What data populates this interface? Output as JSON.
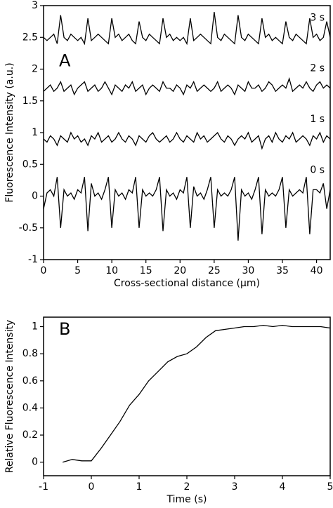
{
  "chart_data": [
    {
      "type": "line",
      "panel_label": "A",
      "x_label": "Cross-sectional distance (µm)",
      "y_label": "Fluorescence Intensity (a.u.)",
      "xlim": [
        0,
        42
      ],
      "ylim": [
        -1,
        3
      ],
      "xticks": [
        0,
        5,
        10,
        15,
        20,
        25,
        30,
        35,
        40
      ],
      "yticks": [
        -1,
        -0.5,
        0,
        0.5,
        1,
        1.5,
        2,
        2.5,
        3
      ],
      "x": [
        0,
        0.5,
        1,
        1.5,
        2,
        2.5,
        3,
        3.5,
        4,
        4.5,
        5,
        5.5,
        6,
        6.5,
        7,
        7.5,
        8,
        8.5,
        9,
        9.5,
        10,
        10.5,
        11,
        11.5,
        12,
        12.5,
        13,
        13.5,
        14,
        14.5,
        15,
        15.5,
        16,
        16.5,
        17,
        17.5,
        18,
        18.5,
        19,
        19.5,
        20,
        20.5,
        21,
        21.5,
        22,
        22.5,
        23,
        23.5,
        24,
        24.5,
        25,
        25.5,
        26,
        26.5,
        27,
        27.5,
        28,
        28.5,
        29,
        29.5,
        30,
        30.5,
        31,
        31.5,
        32,
        32.5,
        33,
        33.5,
        34,
        34.5,
        35,
        35.5,
        36,
        36.5,
        37,
        37.5,
        38,
        38.5,
        39,
        39.5,
        40,
        40.5,
        41,
        41.5,
        42
      ],
      "series": [
        {
          "name": "0 s",
          "color": "#000000",
          "values": [
            -0.2,
            0.05,
            0.1,
            0,
            0.3,
            -0.5,
            0.1,
            0,
            0.05,
            -0.05,
            0.1,
            0.05,
            0.3,
            -0.55,
            0.2,
            0,
            0.05,
            -0.05,
            0.1,
            0.3,
            -0.5,
            0.1,
            0,
            0.05,
            -0.05,
            0.1,
            0.05,
            0.3,
            -0.5,
            0.1,
            0,
            0.05,
            0,
            0.1,
            0.3,
            -0.55,
            0.1,
            0,
            0.05,
            -0.05,
            0.1,
            0.05,
            0.3,
            -0.5,
            0.15,
            0,
            0.05,
            -0.05,
            0.1,
            0.3,
            -0.5,
            0.1,
            0,
            0.05,
            0,
            0.1,
            0.3,
            -0.7,
            0.1,
            0,
            0.05,
            -0.05,
            0.1,
            0.3,
            -0.6,
            0.1,
            0,
            0.05,
            0,
            0.1,
            0.3,
            -0.5,
            0.1,
            0,
            0.05,
            0.1,
            0.05,
            0.3,
            -0.6,
            0.1,
            0.1,
            0.05,
            0.2,
            -0.2,
            0.1
          ]
        },
        {
          "name": "1 s",
          "color": "#000000",
          "values": [
            0.9,
            0.85,
            0.95,
            0.9,
            0.8,
            0.95,
            0.9,
            0.85,
            1.0,
            0.9,
            0.95,
            0.85,
            0.9,
            0.8,
            0.95,
            0.9,
            1.0,
            0.85,
            0.9,
            0.95,
            0.85,
            0.9,
            1.0,
            0.9,
            0.85,
            0.95,
            0.9,
            0.8,
            0.95,
            0.9,
            0.85,
            0.95,
            1.0,
            0.9,
            0.85,
            0.9,
            0.95,
            0.85,
            0.9,
            1.0,
            0.9,
            0.85,
            0.95,
            0.9,
            0.85,
            1.0,
            0.9,
            0.95,
            0.85,
            0.9,
            0.95,
            1.0,
            0.9,
            0.85,
            0.95,
            0.9,
            0.8,
            0.9,
            0.95,
            0.9,
            1.0,
            0.85,
            0.9,
            0.95,
            0.75,
            0.9,
            0.95,
            0.85,
            1.0,
            0.9,
            0.85,
            0.95,
            0.9,
            1.0,
            0.85,
            0.9,
            0.95,
            0.9,
            0.8,
            0.95,
            0.9,
            1.0,
            0.85,
            0.95,
            0.9
          ]
        },
        {
          "name": "2 s",
          "color": "#000000",
          "values": [
            1.65,
            1.7,
            1.75,
            1.65,
            1.7,
            1.8,
            1.65,
            1.7,
            1.75,
            1.6,
            1.7,
            1.75,
            1.8,
            1.65,
            1.7,
            1.75,
            1.65,
            1.7,
            1.8,
            1.7,
            1.6,
            1.75,
            1.7,
            1.65,
            1.75,
            1.7,
            1.8,
            1.65,
            1.7,
            1.75,
            1.6,
            1.7,
            1.75,
            1.7,
            1.65,
            1.8,
            1.7,
            1.7,
            1.65,
            1.75,
            1.7,
            1.6,
            1.75,
            1.7,
            1.8,
            1.65,
            1.7,
            1.75,
            1.7,
            1.65,
            1.7,
            1.8,
            1.65,
            1.7,
            1.75,
            1.7,
            1.6,
            1.75,
            1.7,
            1.65,
            1.8,
            1.7,
            1.7,
            1.75,
            1.65,
            1.7,
            1.8,
            1.75,
            1.65,
            1.7,
            1.75,
            1.7,
            1.85,
            1.65,
            1.7,
            1.75,
            1.7,
            1.8,
            1.7,
            1.65,
            1.75,
            1.8,
            1.7,
            1.75,
            1.7
          ]
        },
        {
          "name": "3 s",
          "color": "#000000",
          "values": [
            2.5,
            2.45,
            2.5,
            2.55,
            2.4,
            2.85,
            2.5,
            2.45,
            2.55,
            2.5,
            2.45,
            2.5,
            2.4,
            2.8,
            2.45,
            2.5,
            2.55,
            2.5,
            2.45,
            2.4,
            2.8,
            2.5,
            2.55,
            2.45,
            2.5,
            2.55,
            2.45,
            2.4,
            2.75,
            2.5,
            2.45,
            2.55,
            2.5,
            2.45,
            2.4,
            2.8,
            2.5,
            2.55,
            2.45,
            2.5,
            2.45,
            2.5,
            2.4,
            2.8,
            2.45,
            2.5,
            2.55,
            2.5,
            2.45,
            2.4,
            2.9,
            2.5,
            2.45,
            2.55,
            2.5,
            2.45,
            2.4,
            2.85,
            2.5,
            2.45,
            2.55,
            2.5,
            2.45,
            2.4,
            2.8,
            2.5,
            2.55,
            2.45,
            2.5,
            2.45,
            2.4,
            2.75,
            2.5,
            2.45,
            2.55,
            2.5,
            2.45,
            2.4,
            2.8,
            2.5,
            2.55,
            2.45,
            2.5,
            2.75,
            2.5
          ]
        }
      ]
    },
    {
      "type": "line",
      "panel_label": "B",
      "x_label": "Time (s)",
      "y_label": "Relative Fluorescence Intensity",
      "xlim": [
        -1,
        5
      ],
      "ylim": [
        -0.1,
        1.07
      ],
      "xticks": [
        -1,
        0,
        1,
        2,
        3,
        4,
        5
      ],
      "yticks": [
        0,
        0.2,
        0.4,
        0.6,
        0.8,
        1
      ],
      "x": [
        -0.6,
        -0.4,
        -0.2,
        0,
        0.2,
        0.4,
        0.6,
        0.8,
        1.0,
        1.2,
        1.4,
        1.6,
        1.8,
        2.0,
        2.2,
        2.4,
        2.6,
        2.8,
        3.0,
        3.2,
        3.4,
        3.6,
        3.8,
        4.0,
        4.2,
        4.4,
        4.6,
        4.8,
        5.0
      ],
      "series": [
        {
          "name": null,
          "color": "#000000",
          "values": [
            0,
            0.02,
            0.01,
            0.01,
            0.1,
            0.2,
            0.3,
            0.42,
            0.5,
            0.6,
            0.67,
            0.74,
            0.78,
            0.8,
            0.85,
            0.92,
            0.97,
            0.98,
            0.99,
            1.0,
            1.0,
            1.01,
            1.0,
            1.01,
            1.0,
            1.0,
            1.0,
            1.0,
            0.99
          ]
        }
      ]
    }
  ]
}
